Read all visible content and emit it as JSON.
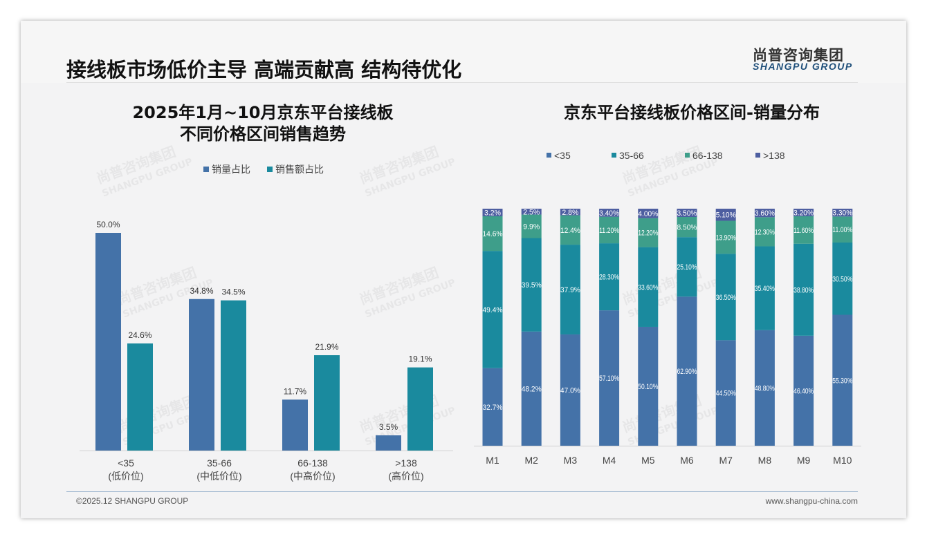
{
  "header": {
    "title": "接线板市场低价主导 高端贡献高 结构待优化",
    "logo_cn": "尚普咨询集团",
    "logo_en": "SHANGPU GROUP"
  },
  "footer": {
    "copyright": "©2025.12 SHANGPU GROUP",
    "website": "www.shangpu-china.com"
  },
  "colors": {
    "blue": "#4472a8",
    "teal": "#1a8a9e",
    "green": "#3e9e8a",
    "purple": "#4d5ea0"
  },
  "chart_data": [
    {
      "type": "bar",
      "title": "2025年1月~10月京东平台接线板",
      "subtitle": "不同价格区间销售趋势",
      "categories": [
        "<35",
        "35-66",
        "66-138",
        ">138"
      ],
      "category_sub": [
        "(低价位)",
        "(中低价位)",
        "(中高价位)",
        "(高价位)"
      ],
      "series": [
        {
          "name": "销量占比",
          "values": [
            50.0,
            34.8,
            11.7,
            3.5
          ]
        },
        {
          "name": "销售额占比",
          "values": [
            24.6,
            34.5,
            21.9,
            19.1
          ]
        }
      ],
      "unit": "%",
      "ylim": [
        0,
        50
      ],
      "legend": "top-center"
    },
    {
      "type": "bar",
      "stacked": true,
      "title": "京东平台接线板价格区间-销量分布",
      "categories": [
        "M1",
        "M2",
        "M3",
        "M4",
        "M5",
        "M6",
        "M7",
        "M8",
        "M9",
        "M10"
      ],
      "series": [
        {
          "name": "<35",
          "values": [
            32.7,
            48.2,
            47.0,
            57.1,
            50.1,
            62.9,
            44.5,
            48.8,
            46.4,
            55.3
          ],
          "labels": [
            "32.7%",
            "48.2%",
            "47.0%",
            "57.10%",
            "50.10%",
            "62.90%",
            "44.50%",
            "48.80%",
            "46.40%",
            "55.30%"
          ]
        },
        {
          "name": "35-66",
          "values": [
            49.4,
            39.5,
            37.9,
            28.3,
            33.6,
            25.1,
            36.5,
            35.4,
            38.8,
            30.5
          ],
          "labels": [
            "49.4%",
            "39.5%",
            "37.9%",
            "28.30%",
            "33.60%",
            "25.10%",
            "36.50%",
            "35.40%",
            "38.80%",
            "30.50%"
          ]
        },
        {
          "name": "66-138",
          "values": [
            14.6,
            9.9,
            12.4,
            11.2,
            12.2,
            8.5,
            13.9,
            12.3,
            11.6,
            11.0
          ],
          "labels": [
            "14.6%",
            "9.9%",
            "12.4%",
            "11.20%",
            "12.20%",
            "8.50%",
            "13.90%",
            "12.30%",
            "11.60%",
            "11.00%"
          ]
        },
        {
          "name": ">138",
          "values": [
            3.2,
            2.5,
            2.8,
            3.4,
            4.0,
            3.5,
            5.1,
            3.6,
            3.2,
            3.3
          ],
          "labels": [
            "3.2%",
            "2.5%",
            "2.8%",
            "3.40%",
            "4.00%",
            "3.50%",
            "5.10%",
            "3.60%",
            "3.20%",
            "3.30%"
          ]
        }
      ],
      "ylim": [
        0,
        100
      ],
      "legend": "top-center"
    }
  ]
}
